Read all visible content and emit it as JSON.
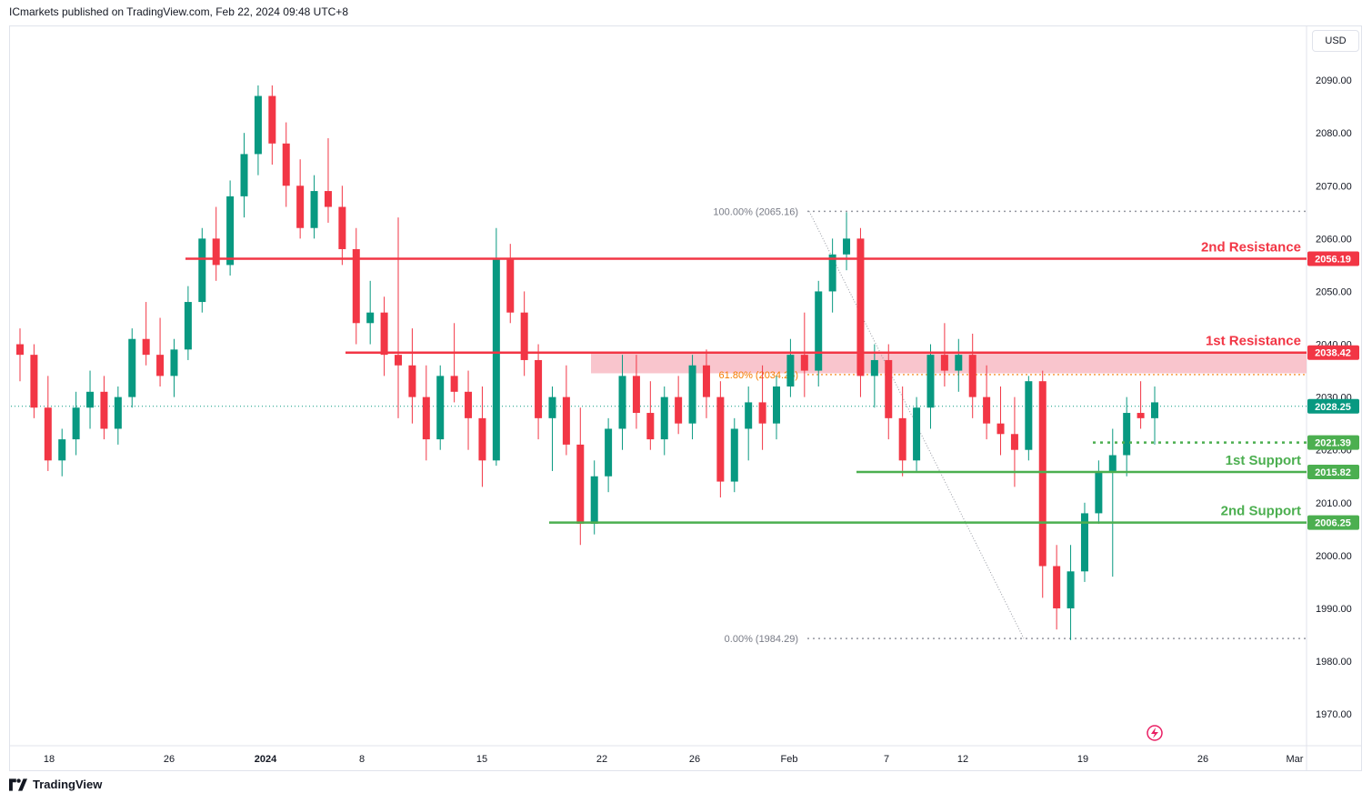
{
  "header": {
    "published_text": "ICmarkets published on TradingView.com, Feb 22, 2024 09:48 UTC+8"
  },
  "toolbar": {
    "currency_label": "USD"
  },
  "footer": {
    "brand": "TradingView"
  },
  "colors": {
    "up": "#089981",
    "down": "#f23645",
    "resistance": "#f23645",
    "support": "#4caf50",
    "zone": "#f8bbc4",
    "current_price": "#089981",
    "fib_line": "#9598a1",
    "fib_label": "#787b86",
    "fib_mid": "#f57c00"
  },
  "chart_data": {
    "type": "candlestick",
    "y_axis": {
      "range": [
        1964,
        2100
      ],
      "ticks": [
        "1970.00",
        "1980.00",
        "1990.00",
        "2000.00",
        "2010.00",
        "2020.00",
        "2030.00",
        "2040.00",
        "2050.00",
        "2060.00",
        "2070.00",
        "2080.00",
        "2090.00"
      ]
    },
    "x_axis": {
      "ticks": [
        "18",
        "26",
        "2024",
        "8",
        "15",
        "22",
        "26",
        "Feb",
        "7",
        "12",
        "19",
        "26",
        "Mar"
      ]
    },
    "grid": false,
    "levels": [
      {
        "name": "2nd Resistance",
        "price": 2056.19,
        "tag": "2056.19",
        "kind": "resistance"
      },
      {
        "name": "1st Resistance",
        "price": 2038.42,
        "tag": "2038.42",
        "kind": "resistance"
      },
      {
        "name": "1st Support",
        "price": 2015.82,
        "tag": "2015.82",
        "kind": "support"
      },
      {
        "name": "2nd Support",
        "price": 2006.25,
        "tag": "2006.25",
        "kind": "support"
      }
    ],
    "dotted_level": {
      "price": 2021.39,
      "tag": "2021.39"
    },
    "current_price": {
      "price": 2028.25,
      "tag": "2028.25"
    },
    "resistance_zone": [
      2034.5,
      2038.42
    ],
    "fibonacci": {
      "high": {
        "label": "100.00% (2065.16)",
        "price": 2065.16
      },
      "mid": {
        "label": "61.80% (2034.25)",
        "price": 2034.25
      },
      "low": {
        "label": "0.00% (1984.29)",
        "price": 1984.29
      }
    },
    "candles": [
      [
        2040,
        2043,
        2033,
        2038
      ],
      [
        2038,
        2040,
        2026,
        2028
      ],
      [
        2028,
        2034,
        2016,
        2018
      ],
      [
        2018,
        2024,
        2015,
        2022
      ],
      [
        2022,
        2031,
        2019,
        2028
      ],
      [
        2028,
        2035,
        2024,
        2031
      ],
      [
        2031,
        2034,
        2022,
        2024
      ],
      [
        2024,
        2032,
        2021,
        2030
      ],
      [
        2030,
        2043,
        2028,
        2041
      ],
      [
        2041,
        2048,
        2036,
        2038
      ],
      [
        2038,
        2045,
        2032,
        2034
      ],
      [
        2034,
        2041,
        2030,
        2039
      ],
      [
        2039,
        2051,
        2037,
        2048
      ],
      [
        2048,
        2062,
        2046,
        2060
      ],
      [
        2060,
        2066,
        2052,
        2055
      ],
      [
        2055,
        2071,
        2053,
        2068
      ],
      [
        2068,
        2080,
        2064,
        2076
      ],
      [
        2076,
        2089,
        2072,
        2087
      ],
      [
        2087,
        2089,
        2074,
        2078
      ],
      [
        2078,
        2082,
        2066,
        2070
      ],
      [
        2070,
        2075,
        2060,
        2062
      ],
      [
        2062,
        2072,
        2060,
        2069
      ],
      [
        2069,
        2079,
        2063,
        2066
      ],
      [
        2066,
        2070,
        2055,
        2058
      ],
      [
        2058,
        2062,
        2040,
        2044
      ],
      [
        2044,
        2052,
        2040,
        2046
      ],
      [
        2046,
        2049,
        2034,
        2038
      ],
      [
        2038,
        2064,
        2026,
        2036
      ],
      [
        2036,
        2043,
        2025,
        2030
      ],
      [
        2030,
        2036,
        2018,
        2022
      ],
      [
        2022,
        2036,
        2020,
        2034
      ],
      [
        2034,
        2044,
        2029,
        2031
      ],
      [
        2031,
        2035,
        2020,
        2026
      ],
      [
        2026,
        2032,
        2013,
        2018
      ],
      [
        2018,
        2062,
        2017,
        2056
      ],
      [
        2056,
        2059,
        2044,
        2046
      ],
      [
        2046,
        2050,
        2034,
        2037
      ],
      [
        2037,
        2040,
        2022,
        2026
      ],
      [
        2026,
        2032,
        2016,
        2030
      ],
      [
        2030,
        2036,
        2019,
        2021
      ],
      [
        2021,
        2028,
        2002,
        2006
      ],
      [
        2006,
        2018,
        2004,
        2015
      ],
      [
        2015,
        2026,
        2012,
        2024
      ],
      [
        2024,
        2038,
        2020,
        2034
      ],
      [
        2034,
        2038,
        2024,
        2027
      ],
      [
        2027,
        2033,
        2020,
        2022
      ],
      [
        2022,
        2032,
        2019,
        2030
      ],
      [
        2030,
        2034,
        2023,
        2025
      ],
      [
        2025,
        2038,
        2022,
        2036
      ],
      [
        2036,
        2039,
        2026,
        2030
      ],
      [
        2030,
        2033,
        2011,
        2014
      ],
      [
        2014,
        2026,
        2012,
        2024
      ],
      [
        2024,
        2032,
        2018,
        2029
      ],
      [
        2029,
        2036,
        2020,
        2025
      ],
      [
        2025,
        2034,
        2022,
        2032
      ],
      [
        2032,
        2041,
        2030,
        2038
      ],
      [
        2038,
        2046,
        2030,
        2035
      ],
      [
        2035,
        2052,
        2032,
        2050
      ],
      [
        2050,
        2060,
        2046,
        2057
      ],
      [
        2057,
        2065,
        2054,
        2060
      ],
      [
        2060,
        2062,
        2030,
        2034
      ],
      [
        2034,
        2040,
        2028,
        2037
      ],
      [
        2037,
        2040,
        2022,
        2026
      ],
      [
        2026,
        2032,
        2015,
        2018
      ],
      [
        2018,
        2030,
        2016,
        2028
      ],
      [
        2028,
        2040,
        2024,
        2038
      ],
      [
        2038,
        2044,
        2032,
        2035
      ],
      [
        2035,
        2041,
        2031,
        2038
      ],
      [
        2038,
        2042,
        2026,
        2030
      ],
      [
        2030,
        2036,
        2022,
        2025
      ],
      [
        2025,
        2032,
        2019,
        2023
      ],
      [
        2023,
        2030,
        2013,
        2020
      ],
      [
        2020,
        2034,
        2018,
        2033
      ],
      [
        2033,
        2035,
        1992,
        1998
      ],
      [
        1998,
        2002,
        1986,
        1990
      ],
      [
        1990,
        2002,
        1984,
        1997
      ],
      [
        1997,
        2010,
        1995,
        2008
      ],
      [
        2008,
        2018,
        2006,
        2016
      ],
      [
        2016,
        2024,
        1996,
        2019
      ],
      [
        2019,
        2030,
        2015,
        2027
      ],
      [
        2027,
        2033,
        2024,
        2026
      ],
      [
        2026,
        2032,
        2021,
        2029
      ]
    ]
  }
}
